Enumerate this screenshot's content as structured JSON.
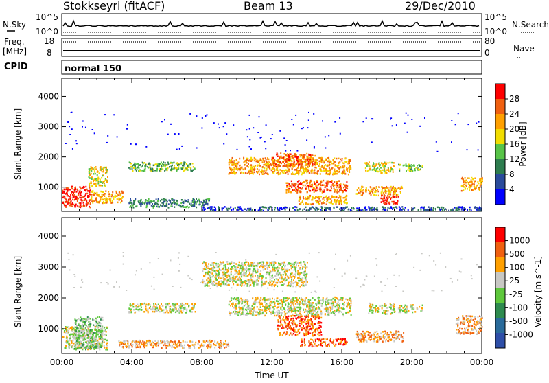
{
  "header": {
    "title": "Stokkseyri (fitACF)",
    "beam": "Beam 13",
    "date": "29/Dec/2010"
  },
  "status_panel": {
    "left_top_label": "N.Sky",
    "left_bottom_label1": "Freq.",
    "left_bottom_label2": "[MHz]",
    "cpid_label": "CPID",
    "right_top_label": "N.Search",
    "right_bottom_label": "Nave",
    "noise_left_ticks": [
      "10^5",
      "10^0"
    ],
    "noise_right_ticks": [
      "10^5",
      "10^0"
    ],
    "freq_ticks": [
      "18",
      "8"
    ],
    "nave_ticks": [
      "80",
      "0"
    ],
    "cpid_value": "normal 150"
  },
  "chart_data": [
    {
      "type": "heatmap",
      "title": "",
      "xlabel": "",
      "ylabel": "Slant Range [km]",
      "ylim": [
        200,
        4600
      ],
      "yticks": [
        "1000",
        "2000",
        "3000",
        "4000"
      ],
      "colorbar_label": "Power [dB]",
      "colorbar_ticks": [
        "28",
        "24",
        "20",
        "16",
        "12",
        "8",
        "4"
      ],
      "colors": [
        "#0000ff",
        "#2a4b9b",
        "#2e7d4f",
        "#58c448",
        "#f2dd00",
        "#ffa000",
        "#f06010",
        "#ff0000"
      ],
      "regions_hours_km": [
        {
          "t0": 0.0,
          "t1": 1.6,
          "r0": 350,
          "r1": 1050,
          "level": 7
        },
        {
          "t0": 1.6,
          "t1": 3.5,
          "r0": 500,
          "r1": 900,
          "level": 5
        },
        {
          "t0": 1.5,
          "t1": 2.6,
          "r0": 1050,
          "r1": 1700,
          "level": 4
        },
        {
          "t0": 3.8,
          "t1": 7.6,
          "r0": 1550,
          "r1": 1850,
          "level": 3
        },
        {
          "t0": 3.8,
          "t1": 8.5,
          "r0": 350,
          "r1": 650,
          "level": 2
        },
        {
          "t0": 9.5,
          "t1": 16.5,
          "r0": 1450,
          "r1": 2000,
          "level": 5
        },
        {
          "t0": 12.0,
          "t1": 14.5,
          "r0": 1700,
          "r1": 2150,
          "level": 6
        },
        {
          "t0": 12.8,
          "t1": 16.3,
          "r0": 850,
          "r1": 1250,
          "level": 6
        },
        {
          "t0": 13.5,
          "t1": 16.3,
          "r0": 450,
          "r1": 750,
          "level": 5
        },
        {
          "t0": 16.8,
          "t1": 19.5,
          "r0": 750,
          "r1": 1050,
          "level": 5
        },
        {
          "t0": 18.2,
          "t1": 19.2,
          "r0": 450,
          "r1": 750,
          "level": 7
        },
        {
          "t0": 17.3,
          "t1": 19.0,
          "r0": 1500,
          "r1": 1850,
          "level": 4
        },
        {
          "t0": 19.2,
          "t1": 20.6,
          "r0": 1550,
          "r1": 1800,
          "level": 3
        },
        {
          "t0": 22.8,
          "t1": 24.0,
          "r0": 900,
          "r1": 1350,
          "level": 5
        },
        {
          "t0": 8.0,
          "t1": 24.0,
          "r0": 250,
          "r1": 380,
          "level": 1
        }
      ]
    },
    {
      "type": "heatmap",
      "title": "",
      "xlabel": "Time UT",
      "ylabel": "Slant Range [km]",
      "ylim": [
        200,
        4600
      ],
      "yticks": [
        "1000",
        "2000",
        "3000",
        "4000"
      ],
      "xticks": [
        "00:00",
        "04:00",
        "08:00",
        "12:00",
        "16:00",
        "20:00",
        "00:00"
      ],
      "colorbar_label": "Velocity [m s^-1]",
      "colorbar_ticks": [
        "1000",
        "500",
        "100",
        "25",
        "-25",
        "-100",
        "-500",
        "-1000"
      ],
      "colors": [
        "#2e4fa8",
        "#2a6b9b",
        "#2e8b4f",
        "#5ec83c",
        "#c8c8c4",
        "#ffa000",
        "#f06010",
        "#ff0000"
      ],
      "regions_hours_km": [
        {
          "t0": 0.0,
          "t1": 2.6,
          "r0": 350,
          "r1": 1100,
          "level": 4
        },
        {
          "t0": 0.7,
          "t1": 2.3,
          "r0": 350,
          "r1": 1400,
          "level": 3
        },
        {
          "t0": 3.8,
          "t1": 7.6,
          "r0": 1550,
          "r1": 1850,
          "level": 4
        },
        {
          "t0": 3.2,
          "t1": 9.5,
          "r0": 400,
          "r1": 650,
          "level": 5
        },
        {
          "t0": 9.5,
          "t1": 16.5,
          "r0": 1450,
          "r1": 2050,
          "level": 4
        },
        {
          "t0": 12.3,
          "t1": 14.8,
          "r0": 800,
          "r1": 1450,
          "level": 6
        },
        {
          "t0": 13.6,
          "t1": 16.3,
          "r0": 450,
          "r1": 700,
          "level": 6
        },
        {
          "t0": 16.8,
          "t1": 19.5,
          "r0": 600,
          "r1": 950,
          "level": 5
        },
        {
          "t0": 17.5,
          "t1": 19.0,
          "r0": 1500,
          "r1": 1850,
          "level": 4
        },
        {
          "t0": 19.2,
          "t1": 20.6,
          "r0": 1550,
          "r1": 1800,
          "level": 4
        },
        {
          "t0": 22.5,
          "t1": 24.0,
          "r0": 850,
          "r1": 1450,
          "level": 5
        },
        {
          "t0": 8.0,
          "t1": 14.0,
          "r0": 2400,
          "r1": 3200,
          "level": 4
        }
      ]
    }
  ],
  "colors": {
    "axis": "#000000",
    "background": "#ffffff"
  }
}
